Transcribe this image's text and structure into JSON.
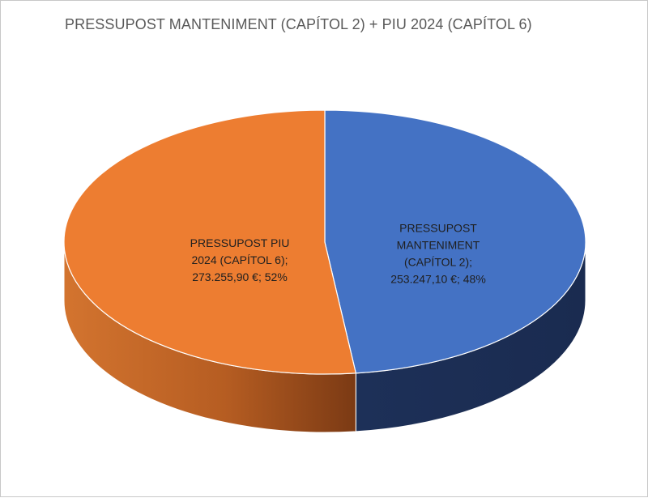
{
  "chart_data": {
    "type": "pie",
    "style": "3d",
    "title": "PRESSUPOST MANTENIMENT (CAPÍTOL 2) + PIU 2024 (CAPÍTOL 6)",
    "slices": [
      {
        "name": "PRESSUPOST MANTENIMENT (CAPÍTOL 2)",
        "value": 253247.1,
        "percent": 48,
        "color": "#4472c4",
        "side_color": "#1c2d55",
        "label_lines": [
          "PRESSUPOST",
          "MANTENIMENT",
          "(CAPÍTOL 2);",
          "253.247,10 €; 48%"
        ]
      },
      {
        "name": "PRESSUPOST PIU 2024 (CAPÍTOL 6)",
        "value": 273255.9,
        "percent": 52,
        "color": "#ed7d31",
        "side_color": "#c0611f",
        "label_lines": [
          "PRESSUPOST PIU",
          "2024 (CAPÍTOL 6);",
          "273.255,90 €; 52%"
        ]
      }
    ]
  }
}
